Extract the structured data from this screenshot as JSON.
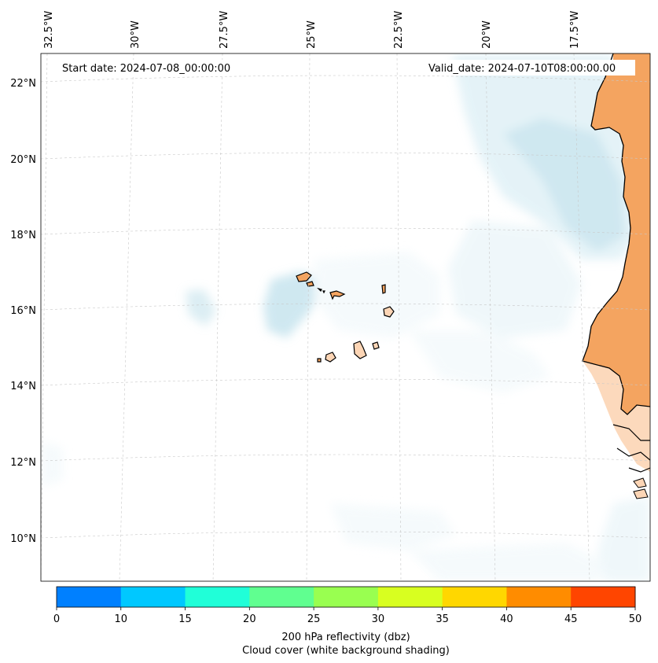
{
  "map": {
    "start_label": "Start date: 2024-07-08_00:00:00",
    "valid_label": "Valid_date: 2024-07-10T08:00:00.00",
    "lon_labels": [
      "32.5°W",
      "30°W",
      "27.5°W",
      "25°W",
      "22.5°W",
      "20°W",
      "17.5°W"
    ],
    "lat_labels": [
      "22°N",
      "20°N",
      "18°N",
      "16°N",
      "14°N",
      "12°N",
      "10°N"
    ],
    "land_color": "#f4a460",
    "cloud_color": "#a9d6e5",
    "islands_color": "#fcd5b5"
  },
  "colorbar": {
    "ticks": [
      "0",
      "10",
      "15",
      "20",
      "25",
      "30",
      "35",
      "40",
      "45",
      "50"
    ],
    "colors": [
      "#0080ff",
      "#00c8ff",
      "#20ffd8",
      "#60ff90",
      "#99ff50",
      "#d8ff20",
      "#ffd700",
      "#ff8c00",
      "#ff4500"
    ],
    "label_line1": "200 hPa reflectivity (dbz)",
    "label_line2": "Cloud cover (white background shading)"
  }
}
